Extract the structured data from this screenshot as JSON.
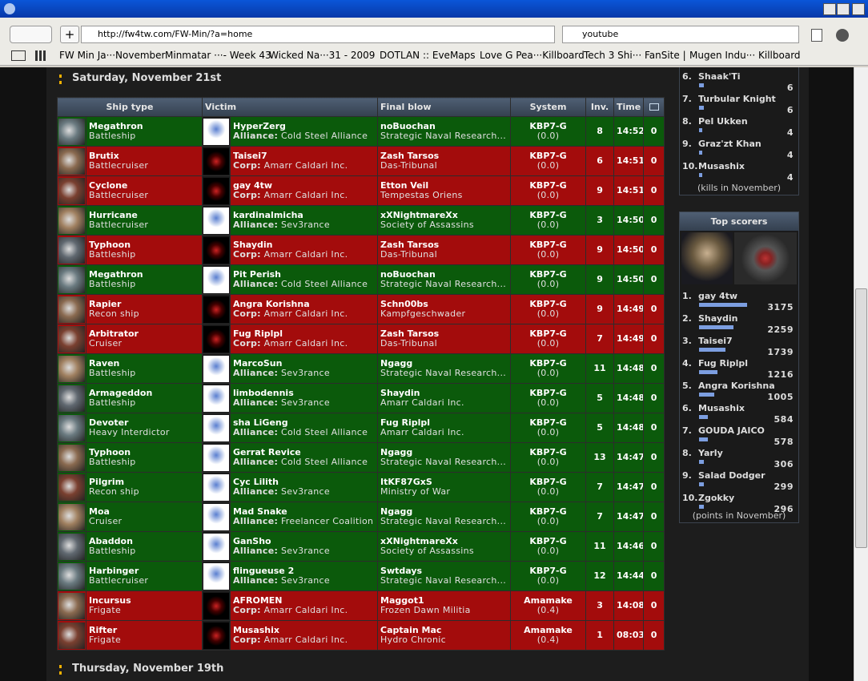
{
  "browser": {
    "url": "http://fw4tw.com/FW-Min/?a=home",
    "search": "youtube",
    "bookmarks": [
      "FW Min Ja···November",
      "Minmatar ···- Week 43",
      "Wicked Na···31 - 2009",
      "DOTLAN :: EveMaps",
      "Love G Pea···Killboard",
      "Tech 3 Shi··· FanSite |",
      "Mugen Indu··· Killboard"
    ]
  },
  "days": [
    "Saturday, November 21st",
    "Thursday, November 19th"
  ],
  "table": {
    "headers": [
      "Ship type",
      "Victim",
      "Final blow",
      "System",
      "Inv.",
      "Time"
    ],
    "rows": [
      {
        "ship": "Megathron",
        "class": "Battleship",
        "victim": "HyperZerg",
        "aff_label": "Alliance:",
        "aff": "Cold Steel Alliance",
        "fb": "noBuochan",
        "fb_corp": "Strategic Naval Research...",
        "system": "KBP7-G",
        "sec": "(0.0)",
        "inv": 8,
        "time": "14:52",
        "comments": 0,
        "result": "kill"
      },
      {
        "ship": "Brutix",
        "class": "Battlecruiser",
        "victim": "Taisei7",
        "aff_label": "Corp:",
        "aff": "Amarr Caldari Inc.",
        "fb": "Zash Tarsos",
        "fb_corp": "Das-Tribunal",
        "system": "KBP7-G",
        "sec": "(0.0)",
        "inv": 6,
        "time": "14:51",
        "comments": 0,
        "result": "loss"
      },
      {
        "ship": "Cyclone",
        "class": "Battlecruiser",
        "victim": "gay 4tw",
        "aff_label": "Corp:",
        "aff": "Amarr Caldari Inc.",
        "fb": "Etton Veil",
        "fb_corp": "Tempestas Oriens",
        "system": "KBP7-G",
        "sec": "(0.0)",
        "inv": 9,
        "time": "14:51",
        "comments": 0,
        "result": "loss"
      },
      {
        "ship": "Hurricane",
        "class": "Battlecruiser",
        "victim": "kardinalmicha",
        "aff_label": "Alliance:",
        "aff": "Sev3rance",
        "fb": "xXNightmareXx",
        "fb_corp": "Society of Assassins",
        "system": "KBP7-G",
        "sec": "(0.0)",
        "inv": 3,
        "time": "14:50",
        "comments": 0,
        "result": "kill"
      },
      {
        "ship": "Typhoon",
        "class": "Battleship",
        "victim": "Shaydin",
        "aff_label": "Corp:",
        "aff": "Amarr Caldari Inc.",
        "fb": "Zash Tarsos",
        "fb_corp": "Das-Tribunal",
        "system": "KBP7-G",
        "sec": "(0.0)",
        "inv": 9,
        "time": "14:50",
        "comments": 0,
        "result": "loss"
      },
      {
        "ship": "Megathron",
        "class": "Battleship",
        "victim": "Pit Perish",
        "aff_label": "Alliance:",
        "aff": "Cold Steel Alliance",
        "fb": "noBuochan",
        "fb_corp": "Strategic Naval Research...",
        "system": "KBP7-G",
        "sec": "(0.0)",
        "inv": 9,
        "time": "14:50",
        "comments": 0,
        "result": "kill"
      },
      {
        "ship": "Rapier",
        "class": "Recon ship",
        "victim": "Angra Korishna",
        "aff_label": "Corp:",
        "aff": "Amarr Caldari Inc.",
        "fb": "Schn00bs",
        "fb_corp": "Kampfgeschwader",
        "system": "KBP7-G",
        "sec": "(0.0)",
        "inv": 9,
        "time": "14:49",
        "comments": 0,
        "result": "loss"
      },
      {
        "ship": "Arbitrator",
        "class": "Cruiser",
        "victim": "Fug Riplpl",
        "aff_label": "Corp:",
        "aff": "Amarr Caldari Inc.",
        "fb": "Zash Tarsos",
        "fb_corp": "Das-Tribunal",
        "system": "KBP7-G",
        "sec": "(0.0)",
        "inv": 7,
        "time": "14:49",
        "comments": 0,
        "result": "loss"
      },
      {
        "ship": "Raven",
        "class": "Battleship",
        "victim": "MarcoSun",
        "aff_label": "Alliance:",
        "aff": "Sev3rance",
        "fb": "Ngagg",
        "fb_corp": "Strategic Naval Research...",
        "system": "KBP7-G",
        "sec": "(0.0)",
        "inv": 11,
        "time": "14:48",
        "comments": 0,
        "result": "kill"
      },
      {
        "ship": "Armageddon",
        "class": "Battleship",
        "victim": "limbodennis",
        "aff_label": "Alliance:",
        "aff": "Sev3rance",
        "fb": "Shaydin",
        "fb_corp": "Amarr Caldari Inc.",
        "system": "KBP7-G",
        "sec": "(0.0)",
        "inv": 5,
        "time": "14:48",
        "comments": 0,
        "result": "kill"
      },
      {
        "ship": "Devoter",
        "class": "Heavy Interdictor",
        "victim": "sha LiGeng",
        "aff_label": "Alliance:",
        "aff": "Cold Steel Alliance",
        "fb": "Fug Riplpl",
        "fb_corp": "Amarr Caldari Inc.",
        "system": "KBP7-G",
        "sec": "(0.0)",
        "inv": 5,
        "time": "14:48",
        "comments": 0,
        "result": "kill"
      },
      {
        "ship": "Typhoon",
        "class": "Battleship",
        "victim": "Gerrat Revice",
        "aff_label": "Alliance:",
        "aff": "Cold Steel Alliance",
        "fb": "Ngagg",
        "fb_corp": "Strategic Naval Research...",
        "system": "KBP7-G",
        "sec": "(0.0)",
        "inv": 13,
        "time": "14:47",
        "comments": 0,
        "result": "kill"
      },
      {
        "ship": "Pilgrim",
        "class": "Recon ship",
        "victim": "Cyc Lilith",
        "aff_label": "Alliance:",
        "aff": "Sev3rance",
        "fb": "ItKF87GxS",
        "fb_corp": "Ministry of War",
        "system": "KBP7-G",
        "sec": "(0.0)",
        "inv": 7,
        "time": "14:47",
        "comments": 0,
        "result": "kill"
      },
      {
        "ship": "Moa",
        "class": "Cruiser",
        "victim": "Mad Snake",
        "aff_label": "Alliance:",
        "aff": "Freelancer Coalition",
        "fb": "Ngagg",
        "fb_corp": "Strategic Naval Research...",
        "system": "KBP7-G",
        "sec": "(0.0)",
        "inv": 7,
        "time": "14:47",
        "comments": 0,
        "result": "kill"
      },
      {
        "ship": "Abaddon",
        "class": "Battleship",
        "victim": "GanSho",
        "aff_label": "Alliance:",
        "aff": "Sev3rance",
        "fb": "xXNightmareXx",
        "fb_corp": "Society of Assassins",
        "system": "KBP7-G",
        "sec": "(0.0)",
        "inv": 11,
        "time": "14:46",
        "comments": 0,
        "result": "kill"
      },
      {
        "ship": "Harbinger",
        "class": "Battlecruiser",
        "victim": "flingueuse 2",
        "aff_label": "Alliance:",
        "aff": "Sev3rance",
        "fb": "Swtdays",
        "fb_corp": "Strategic Naval Research...",
        "system": "KBP7-G",
        "sec": "(0.0)",
        "inv": 12,
        "time": "14:44",
        "comments": 0,
        "result": "kill"
      },
      {
        "ship": "Incursus",
        "class": "Frigate",
        "victim": "AFROMEN",
        "aff_label": "Corp:",
        "aff": "Amarr Caldari Inc.",
        "fb": "Maggot1",
        "fb_corp": "Frozen Dawn Militia",
        "system": "Amamake",
        "sec": "(0.4)",
        "inv": 3,
        "time": "14:08",
        "comments": 0,
        "result": "loss"
      },
      {
        "ship": "Rifter",
        "class": "Frigate",
        "victim": "Musashix",
        "aff_label": "Corp:",
        "aff": "Amarr Caldari Inc.",
        "fb": "Captain Mac",
        "fb_corp": "Hydro Chronic",
        "system": "Amamake",
        "sec": "(0.4)",
        "inv": 1,
        "time": "08:03",
        "comments": 0,
        "result": "loss"
      }
    ]
  },
  "top_kills": {
    "items": [
      {
        "rank": "6.",
        "name": "Shaak'Ti",
        "value": 6
      },
      {
        "rank": "7.",
        "name": "Turbular Knight",
        "value": 6
      },
      {
        "rank": "8.",
        "name": "Pel Ukken",
        "value": 4
      },
      {
        "rank": "9.",
        "name": "Graz'zt Khan",
        "value": 4
      },
      {
        "rank": "10.",
        "name": "Musashix",
        "value": 4
      }
    ],
    "note": "(kills in November)"
  },
  "top_scorers": {
    "title": "Top scorers",
    "items": [
      {
        "rank": "1.",
        "name": "gay 4tw",
        "value": 3175
      },
      {
        "rank": "2.",
        "name": "Shaydin",
        "value": 2259
      },
      {
        "rank": "3.",
        "name": "Taisei7",
        "value": 1739
      },
      {
        "rank": "4.",
        "name": "Fug Riplpl",
        "value": 1216
      },
      {
        "rank": "5.",
        "name": "Angra Korishna",
        "value": 1005
      },
      {
        "rank": "6.",
        "name": "Musashix",
        "value": 584
      },
      {
        "rank": "7.",
        "name": "GOUDA JAICO",
        "value": 578
      },
      {
        "rank": "8.",
        "name": "Yarly",
        "value": 306
      },
      {
        "rank": "9.",
        "name": "Salad Dodger",
        "value": 299
      },
      {
        "rank": "10.",
        "name": "Zgokky",
        "value": 296
      }
    ],
    "note": "(points in November)"
  }
}
